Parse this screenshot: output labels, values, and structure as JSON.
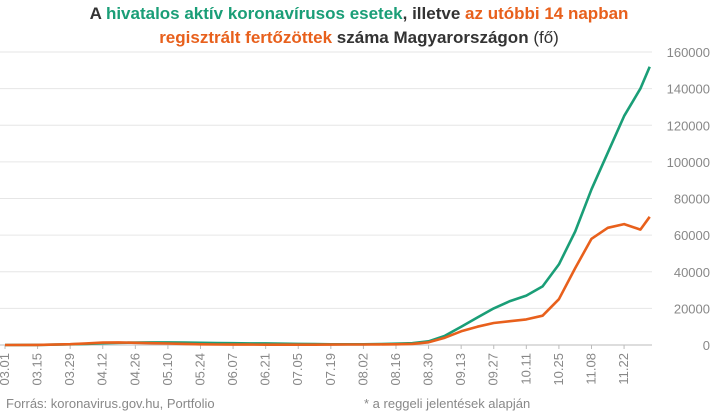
{
  "title": {
    "line1": [
      {
        "text": "A ",
        "color": "#333333",
        "weight": "bold"
      },
      {
        "text": "hivatalos aktív koronavírusos esetek",
        "color": "#1a9e77",
        "weight": "bold"
      },
      {
        "text": ", illetve ",
        "color": "#333333",
        "weight": "bold"
      },
      {
        "text": "az utóbbi 14 napban",
        "color": "#e8601c",
        "weight": "bold"
      }
    ],
    "line2": [
      {
        "text": "regisztrált fertőzöttek",
        "color": "#e8601c",
        "weight": "bold"
      },
      {
        "text": " száma Magyarországon ",
        "color": "#333333",
        "weight": "bold"
      },
      {
        "text": "(fő)",
        "color": "#333333",
        "weight": "normal"
      }
    ]
  },
  "footer": {
    "source": "Forrás: koronavirus.gov.hu, Portfolio",
    "note": "* a reggeli jelentések alapján"
  },
  "colors": {
    "active": "#1a9e77",
    "fourteen_day": "#e8601c",
    "grid": "#e6e6e6",
    "tick": "#888888"
  },
  "chart_data": {
    "type": "line",
    "x_ticks": [
      "03.01",
      "03.15",
      "03.29",
      "04.12",
      "04.26",
      "05.10",
      "05.24",
      "06.07",
      "06.21",
      "07.05",
      "07.19",
      "08.02",
      "08.16",
      "08.30",
      "09.13",
      "09.27",
      "10.11",
      "10.25",
      "11.08",
      "11.22"
    ],
    "y_ticks": [
      0,
      20000,
      40000,
      60000,
      80000,
      100000,
      120000,
      140000,
      160000
    ],
    "ylim": [
      0,
      160000
    ],
    "grid": true,
    "y_axis_side": "right",
    "series": [
      {
        "key": "active",
        "x": [
          "03.01",
          "03.15",
          "03.29",
          "04.05",
          "04.12",
          "04.19",
          "04.26",
          "05.03",
          "05.10",
          "05.17",
          "05.24",
          "05.31",
          "06.07",
          "06.14",
          "06.21",
          "06.28",
          "07.05",
          "07.12",
          "07.19",
          "07.26",
          "08.02",
          "08.09",
          "08.16",
          "08.23",
          "08.30",
          "09.06",
          "09.13",
          "09.20",
          "09.27",
          "10.04",
          "10.11",
          "10.18",
          "10.25",
          "11.01",
          "11.08",
          "11.15",
          "11.22",
          "11.29",
          "12.03"
        ],
        "values": [
          0,
          50,
          400,
          600,
          1000,
          1200,
          1300,
          1400,
          1400,
          1300,
          1200,
          1050,
          1000,
          900,
          850,
          700,
          600,
          500,
          400,
          400,
          400,
          500,
          700,
          1000,
          2000,
          5000,
          10000,
          15000,
          20000,
          24000,
          27000,
          32000,
          44000,
          62000,
          85000,
          105000,
          125000,
          140000,
          152000
        ]
      },
      {
        "key": "fourteen_day",
        "x": [
          "03.01",
          "03.15",
          "03.29",
          "04.05",
          "04.12",
          "04.19",
          "04.26",
          "05.03",
          "05.10",
          "05.17",
          "05.24",
          "05.31",
          "06.07",
          "06.14",
          "06.21",
          "06.28",
          "07.05",
          "07.12",
          "07.19",
          "07.26",
          "08.02",
          "08.09",
          "08.16",
          "08.23",
          "08.30",
          "09.06",
          "09.13",
          "09.20",
          "09.27",
          "10.04",
          "10.11",
          "10.18",
          "10.25",
          "11.01",
          "11.08",
          "11.15",
          "11.22",
          "11.29",
          "12.03"
        ],
        "values": [
          0,
          50,
          450,
          900,
          1300,
          1400,
          1200,
          1000,
          800,
          600,
          400,
          300,
          200,
          200,
          150,
          150,
          150,
          150,
          200,
          250,
          300,
          350,
          400,
          600,
          1500,
          4000,
          7500,
          10000,
          12000,
          13000,
          14000,
          16000,
          25000,
          42000,
          58000,
          64000,
          66000,
          63000,
          70000
        ]
      }
    ]
  }
}
